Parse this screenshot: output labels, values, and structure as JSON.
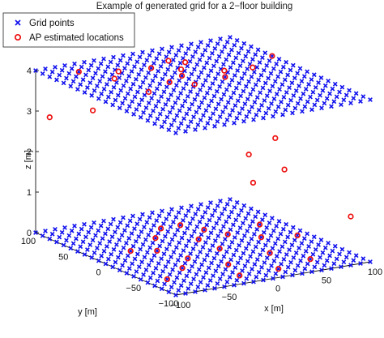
{
  "chart_data": {
    "type": "scatter3d",
    "title": "Example of generated grid for a 2−floor building",
    "xlabel": "x [m]",
    "ylabel": "y [m]",
    "zlabel": "z [m]",
    "xlim": [
      -100,
      100
    ],
    "ylim": [
      -100,
      100
    ],
    "zlim": [
      0,
      4
    ],
    "x_ticks": [
      "−100",
      "−50",
      "0",
      "50",
      "100"
    ],
    "y_ticks": [
      "−100",
      "−50",
      "0",
      "50",
      "100"
    ],
    "z_ticks": [
      "0",
      "1",
      "2",
      "3",
      "4"
    ],
    "legend": {
      "placement": "top-left"
    },
    "grid": false,
    "series": [
      {
        "name": "Grid points",
        "marker": "x",
        "color": "#1010ee",
        "grid_spec": {
          "x_range": [
            -100,
            100
          ],
          "y_range": [
            -100,
            100
          ],
          "step": 10,
          "z_levels": [
            0,
            4
          ]
        }
      },
      {
        "name": "AP estimated locations",
        "marker": "o",
        "color": "#ee1010",
        "points": [
          [
            -10,
            60,
            4
          ],
          [
            10,
            45,
            4
          ],
          [
            -40,
            65,
            4
          ],
          [
            0,
            30,
            4
          ],
          [
            40,
            25,
            4
          ],
          [
            25,
            60,
            4
          ],
          [
            -55,
            50,
            4
          ],
          [
            100,
            40,
            4
          ],
          [
            -20,
            20,
            4
          ],
          [
            -70,
            80,
            4
          ],
          [
            80,
            40,
            3.8
          ],
          [
            -45,
            15,
            3.9
          ],
          [
            15,
            70,
            4
          ],
          [
            30,
            10,
            4
          ],
          [
            -5,
            5,
            4
          ],
          [
            60,
            -20,
            2.6
          ],
          [
            40,
            -10,
            2.2
          ],
          [
            55,
            -40,
            2.0
          ],
          [
            30,
            -30,
            1.7
          ],
          [
            -100,
            80,
            3.0
          ],
          [
            -70,
            60,
            3.2
          ],
          [
            80,
            -100,
            1.2
          ],
          [
            0,
            60,
            0
          ],
          [
            -20,
            40,
            0
          ],
          [
            30,
            40,
            0
          ],
          [
            10,
            20,
            0
          ],
          [
            -40,
            10,
            0
          ],
          [
            40,
            20,
            0
          ],
          [
            -30,
            -20,
            0
          ],
          [
            10,
            -10,
            0
          ],
          [
            60,
            0,
            0
          ],
          [
            -50,
            -40,
            0
          ],
          [
            -10,
            -50,
            0
          ],
          [
            40,
            -40,
            0
          ],
          [
            90,
            -10,
            0
          ],
          [
            -80,
            -60,
            0
          ],
          [
            20,
            -80,
            0
          ],
          [
            60,
            -70,
            0
          ],
          [
            -60,
            20,
            0
          ],
          [
            20,
            60,
            0
          ],
          [
            80,
            30,
            0
          ],
          [
            -20,
            -80,
            0
          ]
        ]
      }
    ]
  }
}
